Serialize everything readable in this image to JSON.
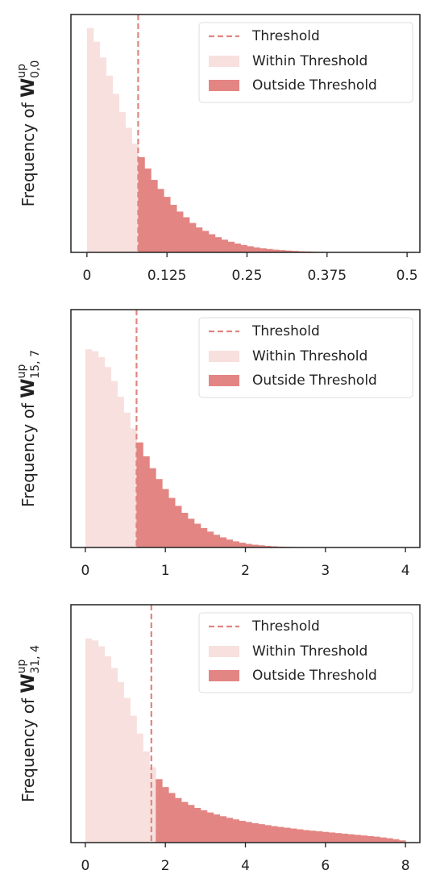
{
  "chart_data": [
    {
      "type": "histogram",
      "ylabel": "Frequency of ",
      "ylabel_symbol": "W",
      "ylabel_sup": "up",
      "ylabel_sub": "0,0",
      "bins": [
        0,
        0.01,
        0.02,
        0.03,
        0.04,
        0.05,
        0.06,
        0.07,
        0.08,
        0.09,
        0.1,
        0.11,
        0.12,
        0.13,
        0.14,
        0.15,
        0.16,
        0.17,
        0.18,
        0.19,
        0.2,
        0.21,
        0.22,
        0.23,
        0.24,
        0.25,
        0.26,
        0.27,
        0.28,
        0.29,
        0.3,
        0.31,
        0.32,
        0.33,
        0.34,
        0.35,
        0.36,
        0.37,
        0.38,
        0.39,
        0.4,
        0.41,
        0.42,
        0.43,
        0.44,
        0.45,
        0.46,
        0.47,
        0.48,
        0.49,
        0.5
      ],
      "values": [
        0.99,
        0.93,
        0.86,
        0.78,
        0.7,
        0.62,
        0.55,
        0.48,
        0.42,
        0.37,
        0.32,
        0.28,
        0.245,
        0.21,
        0.18,
        0.155,
        0.13,
        0.11,
        0.095,
        0.08,
        0.067,
        0.056,
        0.047,
        0.039,
        0.032,
        0.027,
        0.022,
        0.018,
        0.015,
        0.012,
        0.01,
        0.008,
        0.0065,
        0.005,
        0.004,
        0.0032,
        0.0025,
        0.002,
        0.0016,
        0.0013,
        0.001,
        0.0008,
        0.0006,
        0.0005,
        0.0004,
        0.0003,
        0.0002,
        0.0002,
        0.0001,
        0.0001
      ],
      "threshold": 0.08,
      "xlim": [
        -0.025,
        0.52
      ],
      "xticks": [
        0,
        0.125,
        0.25,
        0.375,
        0.5
      ],
      "ylim": [
        0,
        1.05
      ],
      "legend": {
        "threshold": "Threshold",
        "within": "Within Threshold",
        "outside": "Outside Threshold"
      },
      "legend_corner": "upper right",
      "colors": {
        "threshold": "#e08580",
        "within": "#f7e0de",
        "outside": "#e38582"
      }
    },
    {
      "type": "histogram",
      "ylabel": "Frequency of ",
      "ylabel_symbol": "W",
      "ylabel_sup": "up",
      "ylabel_sub": "15, 7",
      "bins": [
        0,
        0.08,
        0.16,
        0.24,
        0.32,
        0.4,
        0.48,
        0.56,
        0.64,
        0.72,
        0.8,
        0.88,
        0.96,
        1.04,
        1.12,
        1.2,
        1.28,
        1.36,
        1.44,
        1.52,
        1.6,
        1.68,
        1.76,
        1.84,
        1.92,
        2,
        2.08,
        2.16,
        2.24,
        2.32,
        2.4,
        2.48,
        2.56,
        2.64,
        2.72,
        2.8,
        2.88,
        2.96,
        3.04,
        3.12,
        3.2,
        3.28,
        3.36,
        3.44,
        3.52,
        3.6,
        3.68,
        3.76,
        3.84,
        3.92,
        4
      ],
      "values": [
        1.0,
        0.99,
        0.96,
        0.91,
        0.84,
        0.76,
        0.68,
        0.6,
        0.53,
        0.46,
        0.4,
        0.345,
        0.295,
        0.25,
        0.21,
        0.175,
        0.145,
        0.12,
        0.098,
        0.08,
        0.064,
        0.051,
        0.04,
        0.031,
        0.024,
        0.018,
        0.014,
        0.011,
        0.008,
        0.006,
        0.0045,
        0.0034,
        0.0025,
        0.0018,
        0.0013,
        0.001,
        0.0007,
        0.0005,
        0.0004,
        0.0003,
        0.0002,
        0.0002,
        0.0001,
        0.0001,
        0.0001,
        0.0001,
        0.0001,
        0,
        0,
        0
      ],
      "threshold": 0.64,
      "xlim": [
        -0.18,
        4.18
      ],
      "xticks": [
        0,
        1,
        2,
        3,
        4
      ],
      "ylim": [
        0,
        1.2
      ],
      "legend": {
        "threshold": "Threshold",
        "within": "Within Threshold",
        "outside": "Outside Threshold"
      },
      "legend_corner": "upper right",
      "colors": {
        "threshold": "#e08580",
        "within": "#f7e0de",
        "outside": "#e38582"
      }
    },
    {
      "type": "histogram",
      "ylabel": "Frequency of ",
      "ylabel_symbol": "W",
      "ylabel_sup": "up",
      "ylabel_sub": "31, 4",
      "bins": [
        0,
        0.16,
        0.32,
        0.48,
        0.64,
        0.8,
        0.96,
        1.12,
        1.28,
        1.44,
        1.6,
        1.76,
        1.92,
        2.08,
        2.24,
        2.4,
        2.56,
        2.72,
        2.88,
        3.04,
        3.2,
        3.36,
        3.52,
        3.68,
        3.84,
        4,
        4.16,
        4.32,
        4.48,
        4.64,
        4.8,
        4.96,
        5.12,
        5.28,
        5.44,
        5.6,
        5.76,
        5.92,
        6.08,
        6.24,
        6.4,
        6.56,
        6.72,
        6.88,
        7.04,
        7.2,
        7.36,
        7.52,
        7.68,
        7.84,
        8
      ],
      "values": [
        1.03,
        1.02,
        0.99,
        0.94,
        0.88,
        0.81,
        0.73,
        0.64,
        0.55,
        0.46,
        0.38,
        0.32,
        0.28,
        0.25,
        0.225,
        0.205,
        0.19,
        0.175,
        0.163,
        0.152,
        0.142,
        0.133,
        0.125,
        0.117,
        0.11,
        0.104,
        0.098,
        0.093,
        0.088,
        0.083,
        0.079,
        0.075,
        0.071,
        0.067,
        0.063,
        0.06,
        0.057,
        0.054,
        0.051,
        0.048,
        0.045,
        0.042,
        0.039,
        0.036,
        0.033,
        0.03,
        0.026,
        0.022,
        0.017,
        0.011
      ],
      "threshold": 1.65,
      "xlim": [
        -0.36,
        8.36
      ],
      "xticks": [
        0,
        2,
        4,
        6,
        8
      ],
      "ylim": [
        0,
        1.2
      ],
      "legend": {
        "threshold": "Threshold",
        "within": "Within Threshold",
        "outside": "Outside Threshold"
      },
      "legend_corner": "upper right",
      "colors": {
        "threshold": "#e08580",
        "within": "#f7e0de",
        "outside": "#e38582"
      }
    }
  ]
}
